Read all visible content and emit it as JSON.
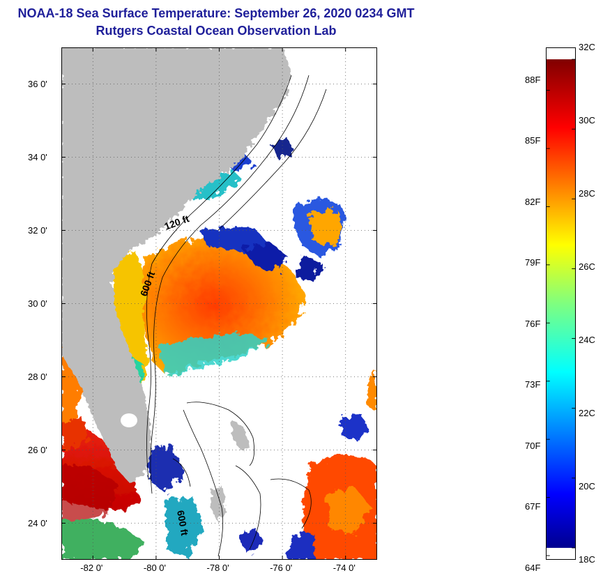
{
  "header": {
    "title_line_1": "NOAA-18 Sea Surface Temperature:  September 26, 2020 0234 GMT",
    "title_line_2": "Rutgers Coastal Ocean Observation Lab"
  },
  "map": {
    "lon_range": [
      -83,
      -73
    ],
    "lat_range": [
      23,
      37
    ],
    "lat_ticks": [
      {
        "value": 36,
        "label": "36 0'"
      },
      {
        "value": 34,
        "label": "34 0'"
      },
      {
        "value": 32,
        "label": "32 0'"
      },
      {
        "value": 30,
        "label": "30 0'"
      },
      {
        "value": 28,
        "label": "28 0'"
      },
      {
        "value": 26,
        "label": "26 0'"
      },
      {
        "value": 24,
        "label": "24 0'"
      }
    ],
    "lon_ticks": [
      {
        "value": -82,
        "label": "-82 0'"
      },
      {
        "value": -80,
        "label": "-80 0'"
      },
      {
        "value": -78,
        "label": "-78 0'"
      },
      {
        "value": -76,
        "label": "-76 0'"
      },
      {
        "value": -74,
        "label": "-74 0'"
      }
    ],
    "contour_labels": {
      "c120": "120 ft",
      "c600": "600 ft",
      "c600b": "600 ft"
    },
    "colors": {
      "land": "#bdbdbd",
      "cloud": "#ffffff",
      "grid": "#555555"
    }
  },
  "colorbar": {
    "celsius_range": [
      18,
      32
    ],
    "celsius_labels": [
      {
        "value": 32,
        "label": "32C"
      },
      {
        "value": 30,
        "label": "30C"
      },
      {
        "value": 28,
        "label": "28C"
      },
      {
        "value": 26,
        "label": "26C"
      },
      {
        "value": 24,
        "label": "24C"
      },
      {
        "value": 22,
        "label": "22C"
      },
      {
        "value": 20,
        "label": "20C"
      },
      {
        "value": 18,
        "label": "18C"
      }
    ],
    "fahrenheit_labels": [
      {
        "value": 88,
        "label": "88F"
      },
      {
        "value": 85,
        "label": "85F"
      },
      {
        "value": 82,
        "label": "82F"
      },
      {
        "value": 79,
        "label": "79F"
      },
      {
        "value": 76,
        "label": "76F"
      },
      {
        "value": 73,
        "label": "73F"
      },
      {
        "value": 70,
        "label": "70F"
      },
      {
        "value": 67,
        "label": "67F"
      },
      {
        "value": 64,
        "label": "64F"
      }
    ]
  }
}
